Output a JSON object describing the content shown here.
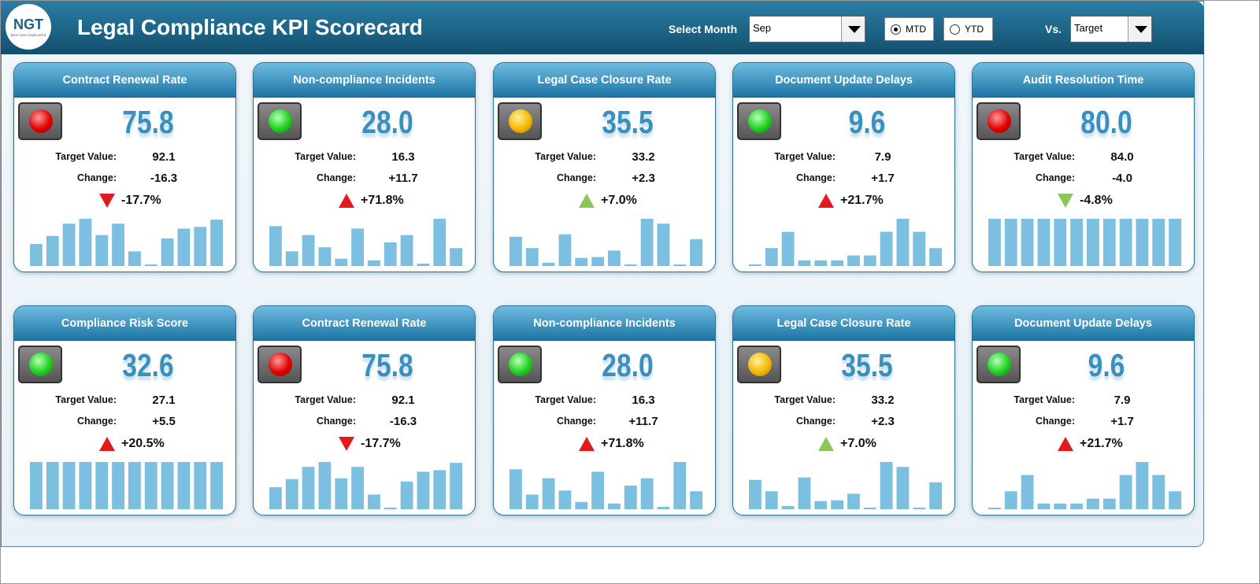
{
  "header": {
    "logo": "NGT",
    "logo_sub": "NEXT GEN TEMPLATES",
    "title": "Legal Compliance KPI Scorecard",
    "month_label": "Select Month",
    "month": "Sep",
    "radio_mtd": "MTD",
    "radio_ytd": "YTD",
    "vs_label": "Vs.",
    "vs": "Target",
    "selected": "MTD"
  },
  "labels": {
    "target": "Target Value:",
    "change": "Change:"
  },
  "cards": [
    {
      "title": "Contract Renewal Rate",
      "value": "75.8",
      "target": "92.1",
      "change": "-16.3",
      "pct": "-17.7%",
      "light": "red",
      "arrow": "down",
      "arrow_color": "#e31a1a",
      "sparkline": [
        27,
        37,
        52,
        58,
        38,
        52,
        18,
        2,
        34,
        46,
        48,
        57
      ]
    },
    {
      "title": "Non-compliance Incidents",
      "value": "28.0",
      "target": "16.3",
      "change": "+11.7",
      "pct": "+71.8%",
      "light": "green",
      "arrow": "up",
      "arrow_color": "#e31a1a",
      "sparkline": [
        49,
        18,
        38,
        23,
        9,
        46,
        7,
        29,
        38,
        3,
        58,
        22
      ]
    },
    {
      "title": "Legal Case Closure Rate",
      "value": "35.5",
      "target": "33.2",
      "change": "+2.3",
      "pct": "+7.0%",
      "light": "yellow",
      "arrow": "up",
      "arrow_color": "#8cc65a",
      "sparkline": [
        36,
        22,
        4,
        39,
        10,
        11,
        19,
        2,
        58,
        52,
        2,
        33
      ]
    },
    {
      "title": "Document Update Delays",
      "value": "9.6",
      "target": "7.9",
      "change": "+1.7",
      "pct": "+21.7%",
      "light": "green",
      "arrow": "up",
      "arrow_color": "#e31a1a",
      "sparkline": [
        2,
        22,
        42,
        7,
        7,
        7,
        13,
        13,
        42,
        58,
        42,
        22
      ]
    },
    {
      "title": "Audit Resolution Time",
      "value": "80.0",
      "target": "84.0",
      "change": "-4.0",
      "pct": "-4.8%",
      "light": "red",
      "arrow": "down",
      "arrow_color": "#8cc65a",
      "sparkline": [
        58,
        58,
        58,
        58,
        58,
        58,
        58,
        58,
        58,
        58,
        58,
        58
      ]
    },
    {
      "title": "Compliance Risk Score",
      "value": "32.6",
      "target": "27.1",
      "change": "+5.5",
      "pct": "+20.5%",
      "light": "green",
      "arrow": "up",
      "arrow_color": "#e31a1a",
      "sparkline": [
        57,
        57,
        57,
        57,
        57,
        57,
        57,
        57,
        57,
        57,
        57,
        57
      ]
    },
    {
      "title": "Contract Renewal Rate",
      "value": "75.8",
      "target": "92.1",
      "change": "-16.3",
      "pct": "-17.7%",
      "light": "red",
      "arrow": "down",
      "arrow_color": "#e31a1a",
      "sparkline": [
        27,
        37,
        52,
        58,
        38,
        52,
        18,
        2,
        34,
        46,
        48,
        57
      ]
    },
    {
      "title": "Non-compliance Incidents",
      "value": "28.0",
      "target": "16.3",
      "change": "+11.7",
      "pct": "+71.8%",
      "light": "green",
      "arrow": "up",
      "arrow_color": "#e31a1a",
      "sparkline": [
        49,
        18,
        38,
        23,
        9,
        46,
        7,
        29,
        38,
        3,
        58,
        22
      ]
    },
    {
      "title": "Legal Case Closure Rate",
      "value": "35.5",
      "target": "33.2",
      "change": "+2.3",
      "pct": "+7.0%",
      "light": "yellow",
      "arrow": "up",
      "arrow_color": "#8cc65a",
      "sparkline": [
        36,
        22,
        4,
        39,
        10,
        11,
        19,
        2,
        58,
        52,
        2,
        33
      ]
    },
    {
      "title": "Document Update Delays",
      "value": "9.6",
      "target": "7.9",
      "change": "+1.7",
      "pct": "+21.7%",
      "light": "green",
      "arrow": "up",
      "arrow_color": "#e31a1a",
      "sparkline": [
        2,
        22,
        42,
        7,
        7,
        7,
        13,
        13,
        42,
        58,
        42,
        22
      ]
    }
  ]
}
